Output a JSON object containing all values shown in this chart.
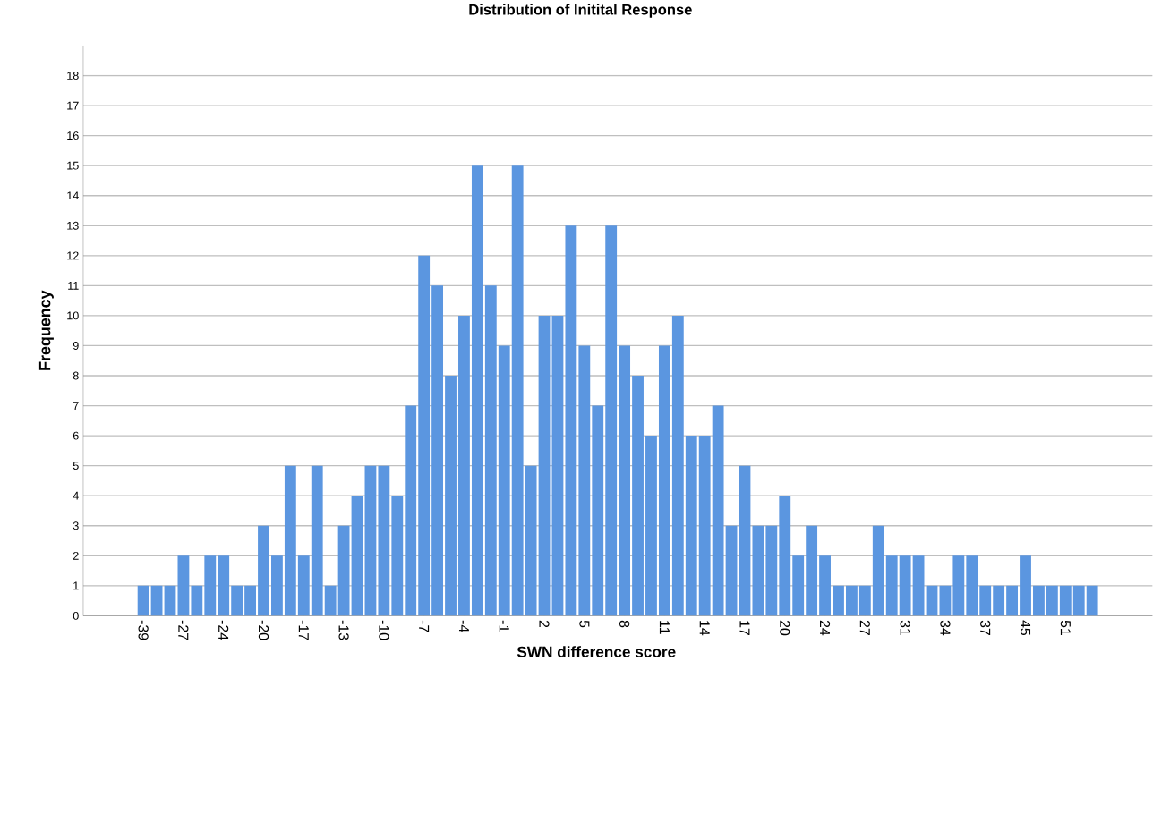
{
  "chart_data": {
    "type": "bar",
    "title": "Distribution of Initital Response",
    "xlabel": "SWN difference score",
    "ylabel": "Frequency",
    "categories": [
      "-39",
      null,
      null,
      "-27",
      null,
      null,
      "-24",
      null,
      null,
      "-20",
      null,
      null,
      "-17",
      null,
      null,
      "-13",
      null,
      null,
      "-10",
      null,
      null,
      "-7",
      null,
      null,
      "-4",
      null,
      null,
      "-1",
      null,
      null,
      "2",
      null,
      null,
      "5",
      null,
      null,
      "8",
      null,
      null,
      "11",
      null,
      null,
      "14",
      null,
      null,
      "17",
      null,
      null,
      "20",
      null,
      null,
      "24",
      null,
      null,
      "27",
      null,
      null,
      "31",
      null,
      null,
      "34",
      null,
      null,
      "37",
      null,
      null,
      "45",
      null,
      null,
      "51",
      null,
      null
    ],
    "values": [
      1,
      1,
      1,
      2,
      1,
      2,
      2,
      1,
      1,
      3,
      2,
      5,
      2,
      5,
      1,
      3,
      4,
      5,
      5,
      4,
      7,
      12,
      11,
      8,
      10,
      15,
      11,
      9,
      15,
      5,
      10,
      10,
      13,
      9,
      7,
      13,
      9,
      8,
      6,
      9,
      10,
      6,
      6,
      7,
      3,
      5,
      3,
      3,
      4,
      2,
      3,
      2,
      1,
      1,
      1,
      3,
      2,
      2,
      2,
      1,
      1,
      2,
      2,
      1,
      1,
      1,
      2,
      1,
      1,
      1,
      1,
      1
    ],
    "color": "#5b96e0",
    "ylim": [
      0,
      19
    ],
    "yticks": [
      0,
      1,
      2,
      3,
      4,
      5,
      6,
      7,
      8,
      9,
      10,
      11,
      12,
      13,
      14,
      15,
      16,
      17,
      18
    ],
    "grid": "y"
  }
}
